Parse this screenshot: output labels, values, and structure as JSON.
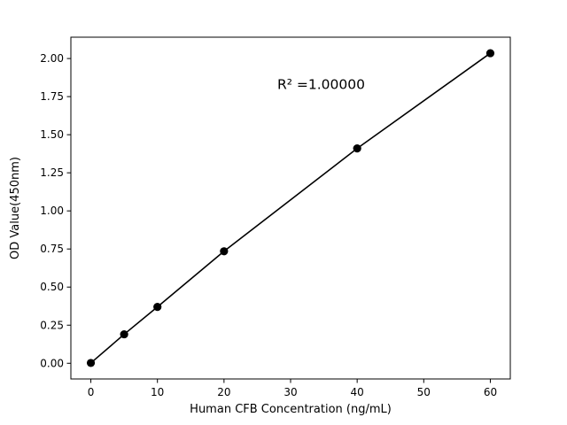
{
  "chart_data": {
    "type": "line",
    "title": "",
    "xlabel": "Human CFB Concentration (ng/mL)",
    "ylabel": "OD Value(450nm)",
    "x": [
      0,
      5,
      10,
      20,
      40,
      60
    ],
    "y": [
      0.002,
      0.19,
      0.37,
      0.735,
      1.41,
      2.035
    ],
    "xlim": [
      -3,
      63
    ],
    "ylim": [
      -0.103,
      2.14
    ],
    "xticks": [
      0,
      10,
      20,
      30,
      40,
      50,
      60
    ],
    "yticks": [
      0.0,
      0.25,
      0.5,
      0.75,
      1.0,
      1.25,
      1.5,
      1.75,
      2.0
    ],
    "annotation": {
      "text": "R² =1.00000",
      "x": 28,
      "y": 1.8
    },
    "line_color": "#000000",
    "marker_color": "#000000",
    "background_color": "#ffffff",
    "grid": false,
    "legend": null
  }
}
